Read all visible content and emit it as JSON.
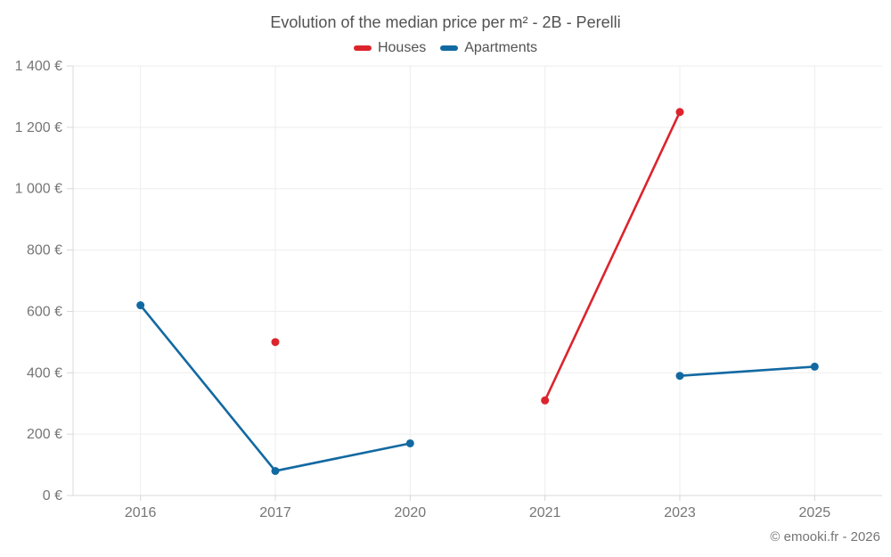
{
  "chart_data": {
    "type": "line",
    "title": "Evolution of the median price per m² - 2B - Perelli",
    "categories": [
      "2016",
      "2017",
      "2020",
      "2021",
      "2023",
      "2025"
    ],
    "series": [
      {
        "name": "Houses",
        "color": "#dc242d",
        "values": [
          null,
          500,
          null,
          310,
          1250,
          null
        ]
      },
      {
        "name": "Apartments",
        "color": "#1269a2",
        "values": [
          620,
          80,
          170,
          null,
          390,
          420
        ]
      }
    ],
    "xlabel": "",
    "ylabel": "",
    "ylim": [
      0,
      1400
    ],
    "ytick_values": [
      0,
      200,
      400,
      600,
      800,
      1000,
      1200,
      1400
    ],
    "ytick_labels": [
      "0 €",
      "200 €",
      "400 €",
      "600 €",
      "800 €",
      "1 000 €",
      "1 200 €",
      "1 400 €"
    ],
    "grid": true,
    "legend_position": "top-center",
    "attribution": "© emooki.fr - 2026"
  }
}
